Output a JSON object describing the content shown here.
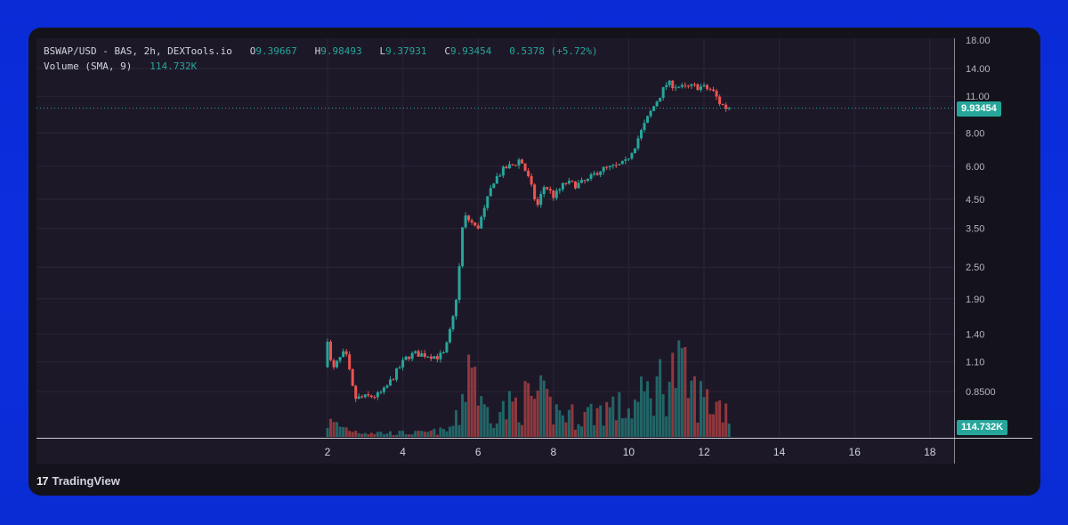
{
  "legend": {
    "symbol": "BSWAP/USD - BAS, 2h, DEXTools.io",
    "open_label": "O",
    "open": "9.39667",
    "high_label": "H",
    "high": "9.98493",
    "low_label": "L",
    "low": "9.37931",
    "close_label": "C",
    "close": "9.93454",
    "change": "0.5378 (+5.72%)",
    "volume_label": "Volume (SMA, 9)",
    "volume_value": "114.732K"
  },
  "last_price_badge": "9.93454",
  "volume_badge": "114.732K",
  "brand": {
    "name": "TradingView"
  },
  "colors": {
    "up": "#26a69a",
    "down": "#ef5350",
    "background": "#1d1828",
    "grid": "#2a2536",
    "axis_text": "#b2b5be"
  },
  "chart_data": {
    "type": "candlestick",
    "price_scale": "log",
    "y_ticks": [
      "18.00",
      "14.00",
      "11.00",
      "8.00",
      "6.00",
      "4.50",
      "3.50",
      "2.50",
      "1.90",
      "1.40",
      "1.10",
      "0.8500"
    ],
    "y_tick_values": [
      18,
      14,
      11,
      8,
      6,
      4.5,
      3.5,
      2.5,
      1.9,
      1.4,
      1.1,
      0.85
    ],
    "x_ticks": [
      "2",
      "4",
      "6",
      "8",
      "10",
      "12",
      "14",
      "16",
      "18"
    ],
    "x_tick_values": [
      2,
      4,
      6,
      8,
      10,
      12,
      14,
      16,
      18
    ],
    "last_price": 9.93454,
    "price_path": [
      [
        2.0,
        1.05
      ],
      [
        2.05,
        1.45
      ],
      [
        2.1,
        1.3
      ],
      [
        2.2,
        1.0
      ],
      [
        2.35,
        1.1
      ],
      [
        2.55,
        1.2
      ],
      [
        2.7,
        0.95
      ],
      [
        2.8,
        0.8
      ],
      [
        3.1,
        0.81
      ],
      [
        3.4,
        0.82
      ],
      [
        3.6,
        0.86
      ],
      [
        3.8,
        0.95
      ],
      [
        4.0,
        1.05
      ],
      [
        4.2,
        1.15
      ],
      [
        4.4,
        1.18
      ],
      [
        4.7,
        1.17
      ],
      [
        5.0,
        1.15
      ],
      [
        5.2,
        1.18
      ],
      [
        5.4,
        1.55
      ],
      [
        5.55,
        2.1
      ],
      [
        5.7,
        3.9
      ],
      [
        5.9,
        3.7
      ],
      [
        6.05,
        3.45
      ],
      [
        6.25,
        4.1
      ],
      [
        6.5,
        5.3
      ],
      [
        6.8,
        5.9
      ],
      [
        7.05,
        6.1
      ],
      [
        7.2,
        6.4
      ],
      [
        7.4,
        5.5
      ],
      [
        7.65,
        4.2
      ],
      [
        7.85,
        5.1
      ],
      [
        8.1,
        4.6
      ],
      [
        8.4,
        5.2
      ],
      [
        8.7,
        5.1
      ],
      [
        9.0,
        5.3
      ],
      [
        9.3,
        5.8
      ],
      [
        9.55,
        5.9
      ],
      [
        9.8,
        6.0
      ],
      [
        10.0,
        6.2
      ],
      [
        10.25,
        7.2
      ],
      [
        10.45,
        8.3
      ],
      [
        10.7,
        9.8
      ],
      [
        10.9,
        11.0
      ],
      [
        11.1,
        12.3
      ],
      [
        11.3,
        12.1
      ],
      [
        11.55,
        11.8
      ],
      [
        11.8,
        12.0
      ],
      [
        12.05,
        11.9
      ],
      [
        12.3,
        11.6
      ],
      [
        12.5,
        10.4
      ],
      [
        12.68,
        9.93
      ]
    ],
    "volume_path": [
      [
        2.0,
        22
      ],
      [
        2.8,
        8
      ],
      [
        3.5,
        6
      ],
      [
        4.5,
        6
      ],
      [
        5.2,
        10
      ],
      [
        5.5,
        30
      ],
      [
        5.8,
        140
      ],
      [
        6.1,
        40
      ],
      [
        6.7,
        40
      ],
      [
        7.0,
        50
      ],
      [
        7.6,
        60
      ],
      [
        8.0,
        40
      ],
      [
        8.6,
        30
      ],
      [
        9.5,
        45
      ],
      [
        10.0,
        40
      ],
      [
        10.6,
        70
      ],
      [
        11.0,
        90
      ],
      [
        11.3,
        100
      ],
      [
        11.8,
        60
      ],
      [
        12.3,
        50
      ],
      [
        12.68,
        40
      ]
    ],
    "volume_max": 140
  }
}
